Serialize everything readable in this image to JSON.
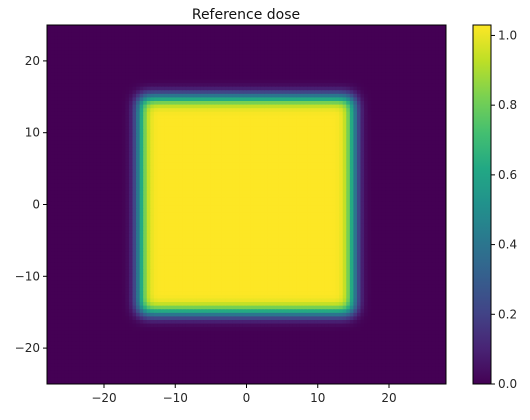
{
  "chart_data": {
    "type": "heatmap",
    "title": "Reference dose",
    "xlabel": "",
    "ylabel": "",
    "xlim": [
      -28,
      28
    ],
    "ylim": [
      -25,
      25
    ],
    "xticks": [
      -20,
      -10,
      0,
      10,
      20
    ],
    "yticks": [
      -20,
      -10,
      0,
      10,
      20
    ],
    "grid": false,
    "field": {
      "shape": "square",
      "x_range": [
        -15,
        15
      ],
      "y_range": [
        -15,
        15
      ],
      "plateau_value": 1.03,
      "background_value": 0.0,
      "penumbra_width": 1.3
    },
    "colorbar": {
      "colormap": "viridis",
      "range": [
        0.0,
        1.03
      ],
      "ticks": [
        0.0,
        0.2,
        0.4,
        0.6,
        0.8,
        1.0
      ],
      "tick_labels": [
        "0.0",
        "0.2",
        "0.4",
        "0.6",
        "0.8",
        "1.0"
      ],
      "placement": "right"
    }
  }
}
